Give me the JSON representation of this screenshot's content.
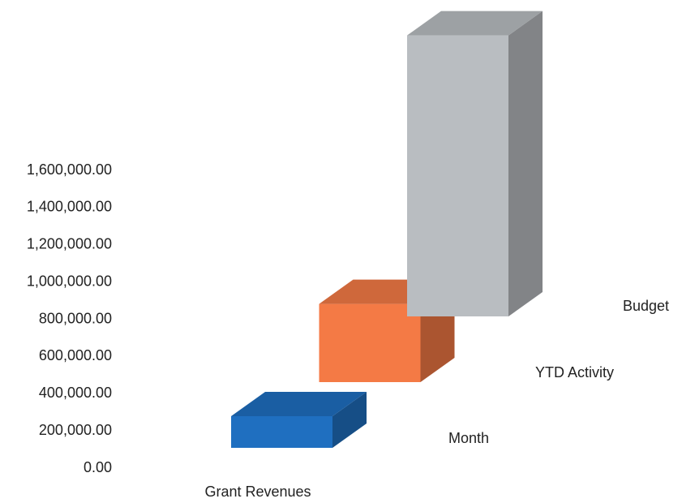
{
  "chart_data": {
    "type": "bar3d",
    "categories": [
      "Grant Revenues"
    ],
    "series": [
      {
        "name": "Month",
        "color": "#1f6fc0",
        "values": [
          170000
        ]
      },
      {
        "name": "YTD Activity",
        "color": "#f47a45",
        "values": [
          420000
        ]
      },
      {
        "name": "Budget",
        "color": "#b9bdc1",
        "values": [
          1510000
        ]
      }
    ],
    "ylim": [
      0,
      1600000
    ],
    "yticks": [
      {
        "value": 0,
        "label": "0.00"
      },
      {
        "value": 200000,
        "label": "200,000.00"
      },
      {
        "value": 400000,
        "label": "400,000.00"
      },
      {
        "value": 600000,
        "label": "600,000.00"
      },
      {
        "value": 800000,
        "label": "800,000.00"
      },
      {
        "value": 1000000,
        "label": "1,000,000.00"
      },
      {
        "value": 1200000,
        "label": "1,200,000.00"
      },
      {
        "value": 1400000,
        "label": "1,400,000.00"
      },
      {
        "value": 1600000,
        "label": "1,600,000.00"
      }
    ]
  }
}
